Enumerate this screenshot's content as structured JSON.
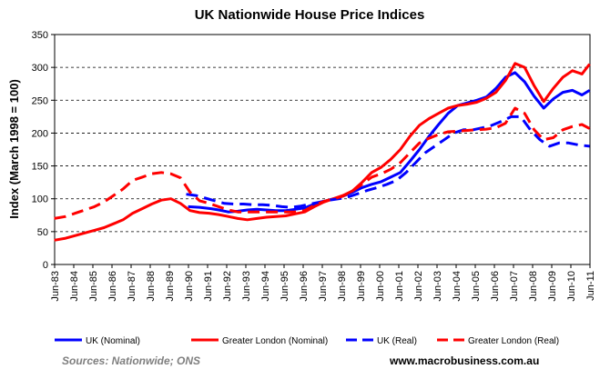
{
  "chart_data": {
    "type": "line",
    "title": "UK Nationwide  House Price Indices",
    "xlabel": "",
    "ylabel": "Index (March 1998 = 100)",
    "ylim": [
      0,
      350
    ],
    "yticks": [
      0,
      50,
      100,
      150,
      200,
      250,
      300,
      350
    ],
    "xlim": [
      1983.42,
      2011.42
    ],
    "grid": "horizontal-dashed",
    "legend_position": "bottom",
    "categories": [
      "Jun-83",
      "Jun-84",
      "Jun-85",
      "Jun-86",
      "Jun-87",
      "Jun-88",
      "Jun-89",
      "Jun-90",
      "Jun-91",
      "Jun-92",
      "Jun-93",
      "Jun-94",
      "Jun-95",
      "Jun-96",
      "Jun-97",
      "Jun-98",
      "Jun-99",
      "Jun-00",
      "Jun-01",
      "Jun-02",
      "Jun-03",
      "Jun-04",
      "Jun-05",
      "Jun-06",
      "Jun-07",
      "Jun-08",
      "Jun-09",
      "Jun-10",
      "Jun-11"
    ],
    "series": [
      {
        "name": "UK (Nominal)",
        "color": "#0000ff",
        "style": "solid",
        "x": [
          1990.4,
          1991.0,
          1991.6,
          1992.0,
          1992.5,
          1993.0,
          1993.5,
          1994.0,
          1994.5,
          1995.0,
          1995.5,
          1996.0,
          1996.5,
          1997.0,
          1997.5,
          1998.0,
          1998.5,
          1999.0,
          1999.5,
          2000.0,
          2000.5,
          2001.0,
          2001.5,
          2002.0,
          2002.5,
          2003.0,
          2003.5,
          2004.0,
          2004.5,
          2005.0,
          2005.5,
          2006.0,
          2006.5,
          2007.0,
          2007.5,
          2008.0,
          2008.5,
          2009.0,
          2009.5,
          2010.0,
          2010.5,
          2011.0,
          2011.4
        ],
        "values": [
          88,
          87,
          85,
          83,
          80,
          81,
          83,
          84,
          83,
          82,
          82,
          84,
          86,
          92,
          96,
          100,
          104,
          110,
          117,
          122,
          126,
          133,
          140,
          157,
          175,
          195,
          213,
          230,
          242,
          246,
          250,
          255,
          268,
          285,
          292,
          278,
          256,
          238,
          252,
          262,
          265,
          258,
          265
        ]
      },
      {
        "name": "Greater London (Nominal)",
        "color": "#ff0000",
        "style": "solid",
        "x": [
          1983.4,
          1984.0,
          1984.5,
          1985.0,
          1985.5,
          1986.0,
          1986.5,
          1987.0,
          1987.5,
          1988.0,
          1988.5,
          1989.0,
          1989.5,
          1990.0,
          1990.5,
          1991.0,
          1991.5,
          1992.0,
          1992.5,
          1993.0,
          1993.5,
          1994.0,
          1994.5,
          1995.0,
          1995.5,
          1996.0,
          1996.5,
          1997.0,
          1997.5,
          1998.0,
          1998.5,
          1999.0,
          1999.5,
          2000.0,
          2000.5,
          2001.0,
          2001.5,
          2002.0,
          2002.5,
          2003.0,
          2003.5,
          2004.0,
          2004.5,
          2005.0,
          2005.5,
          2006.0,
          2006.5,
          2007.0,
          2007.5,
          2008.0,
          2008.5,
          2009.0,
          2009.5,
          2010.0,
          2010.5,
          2011.0,
          2011.4
        ],
        "values": [
          37,
          40,
          44,
          48,
          52,
          56,
          62,
          68,
          78,
          85,
          92,
          98,
          100,
          93,
          82,
          79,
          78,
          76,
          73,
          70,
          68,
          70,
          72,
          73,
          74,
          77,
          80,
          88,
          95,
          100,
          105,
          112,
          125,
          140,
          148,
          160,
          175,
          195,
          212,
          222,
          230,
          238,
          242,
          244,
          247,
          253,
          262,
          280,
          306,
          300,
          272,
          248,
          268,
          285,
          295,
          290,
          305
        ]
      },
      {
        "name": "UK (Real)",
        "color": "#0000ff",
        "style": "dashed",
        "x": [
          1990.3,
          1990.8,
          1991.3,
          1991.8,
          1992.3,
          1992.8,
          1993.3,
          1993.8,
          1994.3,
          1994.8,
          1995.3,
          1995.8,
          1996.3,
          1996.8,
          1997.3,
          1997.8,
          1998.3,
          1998.8,
          1999.3,
          1999.8,
          2000.3,
          2000.8,
          2001.3,
          2001.8,
          2002.3,
          2002.8,
          2003.3,
          2003.8,
          2004.3,
          2004.8,
          2005.3,
          2005.8,
          2006.3,
          2006.8,
          2007.3,
          2007.8,
          2008.3,
          2008.8,
          2009.3,
          2009.8,
          2010.3,
          2010.8,
          2011.4
        ],
        "values": [
          107,
          105,
          101,
          97,
          93,
          92,
          92,
          91,
          91,
          90,
          88,
          87,
          89,
          92,
          95,
          98,
          100,
          103,
          108,
          113,
          117,
          122,
          128,
          140,
          155,
          170,
          180,
          190,
          200,
          205,
          205,
          208,
          212,
          218,
          225,
          225,
          205,
          190,
          180,
          185,
          185,
          182,
          180
        ]
      },
      {
        "name": "Greater London (Real)",
        "color": "#ff0000",
        "style": "dashed",
        "x": [
          1983.4,
          1984.0,
          1984.5,
          1985.0,
          1985.5,
          1986.0,
          1986.5,
          1987.0,
          1987.5,
          1988.0,
          1988.5,
          1989.0,
          1989.5,
          1990.0,
          1990.5,
          1991.0,
          1991.5,
          1992.0,
          1992.5,
          1993.0,
          1993.5,
          1994.0,
          1994.5,
          1995.0,
          1995.5,
          1996.0,
          1996.5,
          1997.0,
          1997.5,
          1998.0,
          1998.5,
          1999.0,
          1999.5,
          2000.0,
          2000.5,
          2001.0,
          2001.5,
          2002.0,
          2002.5,
          2003.0,
          2003.5,
          2004.0,
          2004.5,
          2005.0,
          2005.5,
          2006.0,
          2006.5,
          2007.0,
          2007.5,
          2008.0,
          2008.5,
          2009.0,
          2009.5,
          2010.0,
          2010.5,
          2011.0,
          2011.4
        ],
        "values": [
          70,
          73,
          78,
          83,
          88,
          95,
          105,
          115,
          128,
          133,
          138,
          140,
          138,
          132,
          110,
          97,
          93,
          88,
          83,
          80,
          80,
          80,
          80,
          80,
          80,
          80,
          82,
          90,
          96,
          100,
          104,
          112,
          122,
          133,
          138,
          145,
          155,
          170,
          185,
          192,
          198,
          202,
          203,
          204,
          205,
          206,
          208,
          215,
          238,
          230,
          205,
          190,
          193,
          205,
          210,
          213,
          207
        ]
      }
    ],
    "legend": [
      "UK (Nominal)",
      "Greater London (Nominal)",
      "UK (Real)",
      "Greater London (Real)"
    ]
  },
  "footer": {
    "source": "Sources:  Nationwide;  ONS",
    "website": "www.macrobusiness.com.au"
  }
}
